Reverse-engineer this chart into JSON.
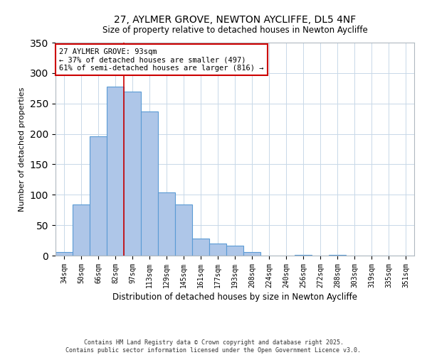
{
  "title": "27, AYLMER GROVE, NEWTON AYCLIFFE, DL5 4NF",
  "subtitle": "Size of property relative to detached houses in Newton Aycliffe",
  "xlabel": "Distribution of detached houses by size in Newton Aycliffe",
  "ylabel": "Number of detached properties",
  "bar_labels": [
    "34sqm",
    "50sqm",
    "66sqm",
    "82sqm",
    "97sqm",
    "113sqm",
    "129sqm",
    "145sqm",
    "161sqm",
    "177sqm",
    "193sqm",
    "208sqm",
    "224sqm",
    "240sqm",
    "256sqm",
    "272sqm",
    "288sqm",
    "303sqm",
    "319sqm",
    "335sqm",
    "351sqm"
  ],
  "bar_values": [
    6,
    84,
    196,
    278,
    270,
    237,
    104,
    84,
    28,
    20,
    16,
    6,
    0,
    0,
    1,
    0,
    1,
    0,
    0,
    0,
    0
  ],
  "bar_color": "#aec6e8",
  "bar_edgecolor": "#5b9bd5",
  "bar_linewidth": 0.8,
  "redline_color": "#cc0000",
  "ylim": [
    0,
    350
  ],
  "yticks": [
    0,
    50,
    100,
    150,
    200,
    250,
    300,
    350
  ],
  "annotation_text": "27 AYLMER GROVE: 93sqm\n← 37% of detached houses are smaller (497)\n61% of semi-detached houses are larger (816) →",
  "footer_line1": "Contains HM Land Registry data © Crown copyright and database right 2025.",
  "footer_line2": "Contains public sector information licensed under the Open Government Licence v3.0.",
  "background_color": "#ffffff",
  "grid_color": "#c8d8e8"
}
